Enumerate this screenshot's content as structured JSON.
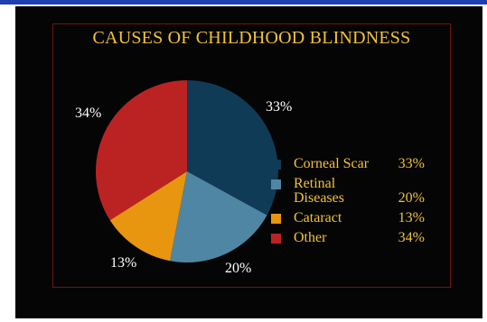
{
  "colors": {
    "top_bar": "#1f3fae",
    "background": "#050505",
    "title": "#f2c23a",
    "legend_text": "#f2c23a",
    "frame": "#6e1515"
  },
  "chart_data": {
    "type": "pie",
    "title": "CAUSES OF CHILDHOOD BLINDNESS",
    "legend_position": "right",
    "slices": [
      {
        "label": "Corneal Scar",
        "value": 33,
        "pct_label": "33%",
        "legend_value": "33%",
        "color": "#0f3b57"
      },
      {
        "label": "Retinal\nDiseases",
        "value": 20,
        "pct_label": "20%",
        "legend_value": "20%",
        "color": "#4f86a3"
      },
      {
        "label": "Cataract",
        "value": 13,
        "pct_label": "13%",
        "legend_value": "13%",
        "color": "#e8960f"
      },
      {
        "label": "Other",
        "value": 34,
        "pct_label": "34%",
        "legend_value": "34%",
        "color": "#bb2323"
      }
    ]
  }
}
